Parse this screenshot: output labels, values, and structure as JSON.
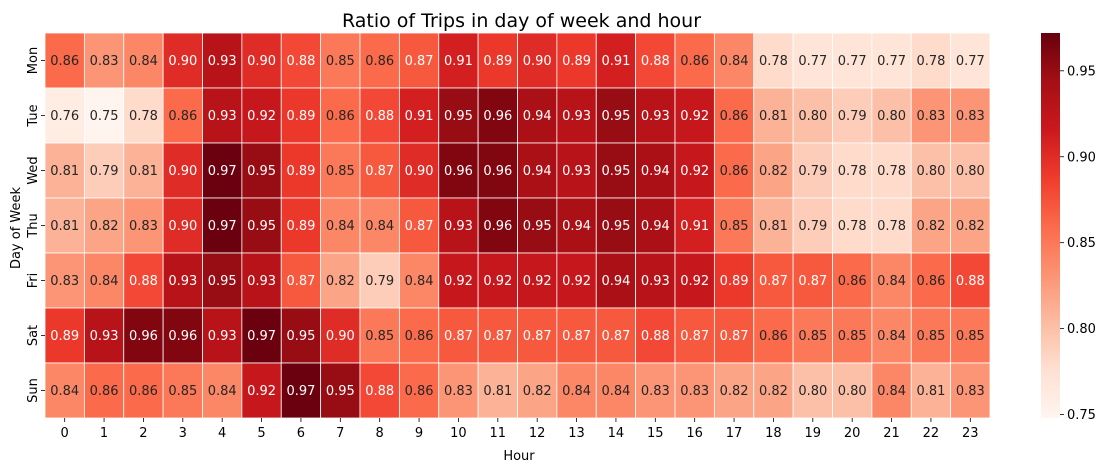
{
  "chart_data": {
    "type": "heatmap",
    "title": "Ratio of Trips in day of week and hour",
    "xlabel": "Hour",
    "ylabel": "Day of Week",
    "x": [
      "0",
      "1",
      "2",
      "3",
      "4",
      "5",
      "6",
      "7",
      "8",
      "9",
      "10",
      "11",
      "12",
      "13",
      "14",
      "15",
      "16",
      "17",
      "18",
      "19",
      "20",
      "21",
      "22",
      "23"
    ],
    "y": [
      "Mon",
      "Tue",
      "Wed",
      "Thu",
      "Fri",
      "Sat",
      "Sun"
    ],
    "values": [
      [
        0.86,
        0.83,
        0.84,
        0.9,
        0.93,
        0.9,
        0.88,
        0.85,
        0.86,
        0.87,
        0.91,
        0.89,
        0.9,
        0.89,
        0.91,
        0.88,
        0.86,
        0.84,
        0.78,
        0.77,
        0.77,
        0.77,
        0.78,
        0.77
      ],
      [
        0.76,
        0.75,
        0.78,
        0.86,
        0.93,
        0.92,
        0.89,
        0.86,
        0.88,
        0.91,
        0.95,
        0.96,
        0.94,
        0.93,
        0.95,
        0.93,
        0.92,
        0.86,
        0.81,
        0.8,
        0.79,
        0.8,
        0.83,
        0.83
      ],
      [
        0.81,
        0.79,
        0.81,
        0.9,
        0.97,
        0.95,
        0.89,
        0.85,
        0.87,
        0.9,
        0.96,
        0.96,
        0.94,
        0.93,
        0.95,
        0.94,
        0.92,
        0.86,
        0.82,
        0.79,
        0.78,
        0.78,
        0.8,
        0.8
      ],
      [
        0.81,
        0.82,
        0.83,
        0.9,
        0.97,
        0.95,
        0.89,
        0.84,
        0.84,
        0.87,
        0.93,
        0.96,
        0.95,
        0.94,
        0.95,
        0.94,
        0.91,
        0.85,
        0.81,
        0.79,
        0.78,
        0.78,
        0.82,
        0.82
      ],
      [
        0.83,
        0.84,
        0.88,
        0.93,
        0.95,
        0.93,
        0.87,
        0.82,
        0.79,
        0.84,
        0.92,
        0.92,
        0.92,
        0.92,
        0.94,
        0.93,
        0.92,
        0.89,
        0.87,
        0.87,
        0.86,
        0.84,
        0.86,
        0.88
      ],
      [
        0.89,
        0.93,
        0.96,
        0.96,
        0.93,
        0.97,
        0.95,
        0.9,
        0.85,
        0.86,
        0.87,
        0.87,
        0.87,
        0.87,
        0.87,
        0.88,
        0.87,
        0.87,
        0.86,
        0.85,
        0.85,
        0.84,
        0.85,
        0.85
      ],
      [
        0.84,
        0.86,
        0.86,
        0.85,
        0.84,
        0.92,
        0.97,
        0.95,
        0.88,
        0.86,
        0.83,
        0.81,
        0.82,
        0.84,
        0.84,
        0.83,
        0.83,
        0.82,
        0.82,
        0.8,
        0.8,
        0.84,
        0.81,
        0.83
      ]
    ],
    "value_format": "2 decimals",
    "colormap": "Reds",
    "colorbar": {
      "min": 0.748,
      "max": 0.972,
      "ticks": [
        "0.75",
        "0.80",
        "0.85",
        "0.90",
        "0.95"
      ],
      "tick_values": [
        0.75,
        0.8,
        0.85,
        0.9,
        0.95
      ]
    },
    "grid": "white cell borders",
    "legend": "colorbar right"
  }
}
